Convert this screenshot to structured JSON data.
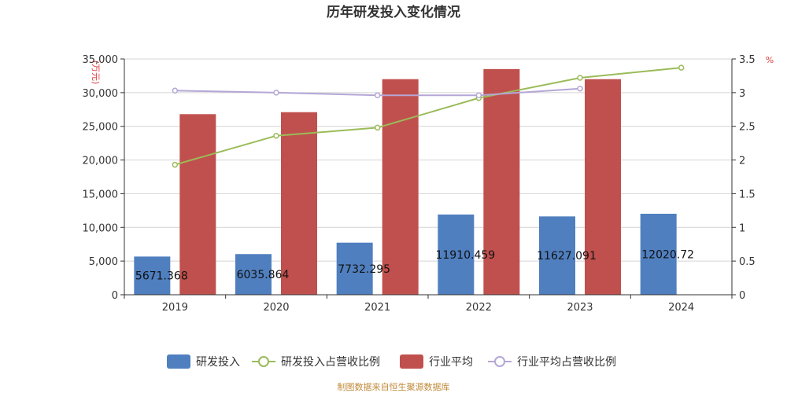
{
  "chart_data": {
    "type": "bar",
    "title": "历年研发投入变化情况",
    "categories": [
      "2019",
      "2020",
      "2021",
      "2022",
      "2023",
      "2024"
    ],
    "y_left": {
      "unit": "(万元)",
      "ylim": [
        0,
        35000
      ],
      "ticks": [
        "0",
        "5,000",
        "10,000",
        "15,000",
        "20,000",
        "25,000",
        "30,000",
        "35,000"
      ]
    },
    "y_right": {
      "unit": "%",
      "ylim": [
        0,
        3.5
      ],
      "ticks": [
        "0",
        "0.5",
        "1",
        "1.5",
        "2",
        "2.5",
        "3",
        "3.5"
      ]
    },
    "series": [
      {
        "name": "研发投入",
        "kind": "bar",
        "axis": "left",
        "color": "#4f7fbf",
        "values": [
          5671.368,
          6035.864,
          7732.295,
          11910.459,
          11627.091,
          12020.72
        ],
        "labels": [
          "5671.368",
          "6035.864",
          "7732.295",
          "11910.459",
          "11627.091",
          "12020.72"
        ]
      },
      {
        "name": "研发投入占营收比例",
        "kind": "line",
        "axis": "right",
        "color": "#9bbb59",
        "values": [
          1.93,
          2.36,
          2.48,
          2.92,
          3.22,
          3.37
        ]
      },
      {
        "name": "行业平均",
        "kind": "bar",
        "axis": "left",
        "color": "#c0504d",
        "values": [
          26800,
          27100,
          32000,
          33500,
          32000,
          null
        ]
      },
      {
        "name": "行业平均占营收比例",
        "kind": "line",
        "axis": "right",
        "color": "#b4a7d6",
        "values": [
          3.03,
          3.0,
          2.96,
          2.96,
          3.06,
          null
        ]
      }
    ],
    "source": "制图数据来自恒生聚源数据库"
  }
}
